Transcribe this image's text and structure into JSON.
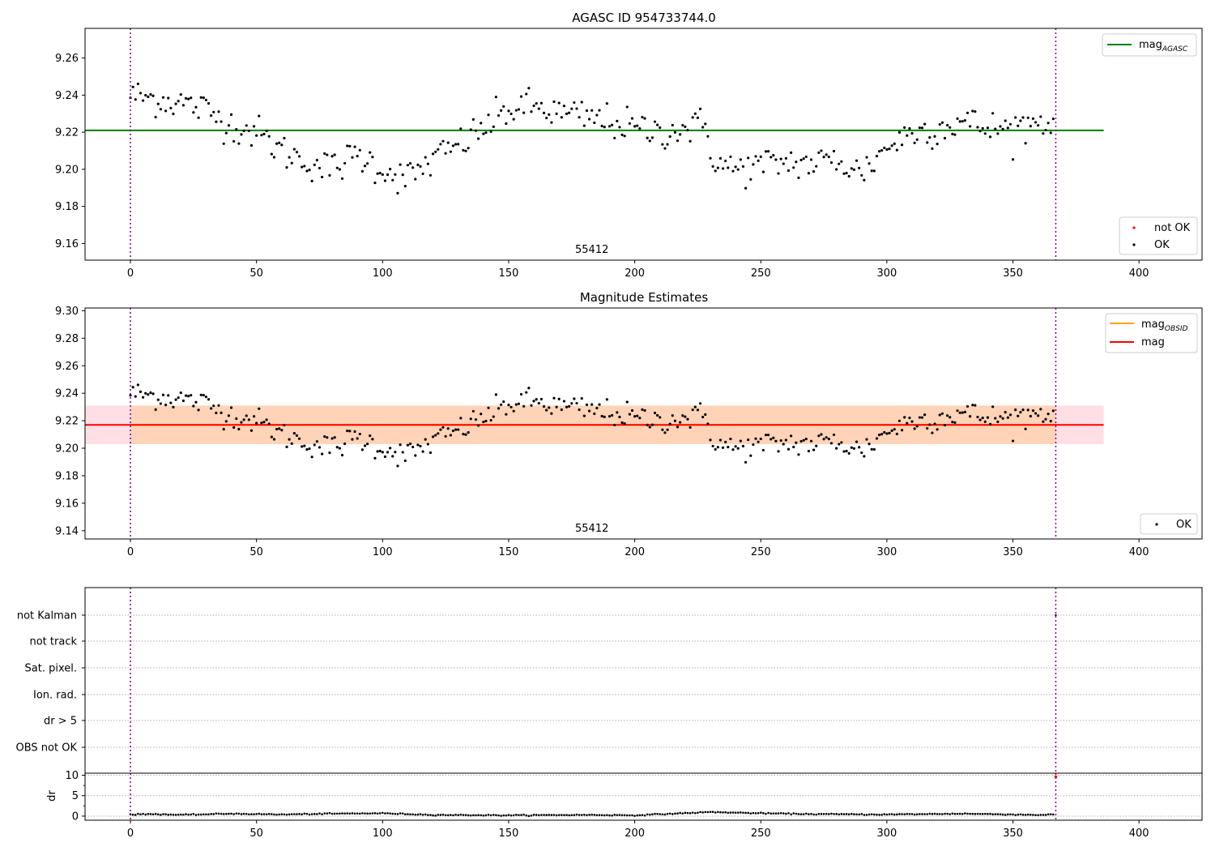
{
  "chart_data": [
    {
      "type": "scatter",
      "title": "AGASC ID 954733744.0",
      "xlim": [
        -18,
        425
      ],
      "ylim": [
        9.151,
        9.276
      ],
      "xticks": [
        0,
        50,
        100,
        150,
        200,
        250,
        300,
        350,
        400
      ],
      "yticks": [
        9.16,
        9.18,
        9.2,
        9.22,
        9.24,
        9.26
      ],
      "ytick_labels": [
        "9.16",
        "9.18",
        "9.20",
        "9.22",
        "9.24",
        "9.26"
      ],
      "grid": false,
      "obsid_label": "55412",
      "obsid_label_x": 183,
      "obsid_bounds": [
        0,
        367
      ],
      "hline": {
        "y": 9.221,
        "x_range": [
          -18,
          386
        ],
        "color": "#008000"
      },
      "legend_top": {
        "placement": "top-right",
        "entries": [
          {
            "label": "mag",
            "sub": "AGASC",
            "color": "#008000",
            "kind": "line"
          }
        ]
      },
      "legend_bottom": {
        "placement": "bottom-right",
        "entries": [
          {
            "label": "not OK",
            "color": "#ff0000",
            "kind": "dot"
          },
          {
            "label": "OK",
            "color": "#000000",
            "kind": "dot"
          }
        ]
      },
      "series": [
        {
          "name": "OK",
          "color": "#000000",
          "n": 367,
          "smooth_points": [
            [
              0,
              9.24
            ],
            [
              10,
              9.238
            ],
            [
              20,
              9.236
            ],
            [
              30,
              9.232
            ],
            [
              40,
              9.224
            ],
            [
              50,
              9.22
            ],
            [
              60,
              9.21
            ],
            [
              70,
              9.204
            ],
            [
              80,
              9.2
            ],
            [
              90,
              9.208
            ],
            [
              100,
              9.2
            ],
            [
              110,
              9.195
            ],
            [
              120,
              9.205
            ],
            [
              130,
              9.213
            ],
            [
              140,
              9.222
            ],
            [
              150,
              9.232
            ],
            [
              160,
              9.234
            ],
            [
              170,
              9.23
            ],
            [
              180,
              9.228
            ],
            [
              190,
              9.226
            ],
            [
              200,
              9.222
            ],
            [
              210,
              9.22
            ],
            [
              220,
              9.222
            ],
            [
              228,
              9.224
            ],
            [
              232,
              9.203
            ],
            [
              240,
              9.2
            ],
            [
              250,
              9.202
            ],
            [
              260,
              9.204
            ],
            [
              270,
              9.203
            ],
            [
              280,
              9.205
            ],
            [
              290,
              9.198
            ],
            [
              300,
              9.212
            ],
            [
              310,
              9.22
            ],
            [
              320,
              9.222
            ],
            [
              330,
              9.226
            ],
            [
              340,
              9.222
            ],
            [
              350,
              9.222
            ],
            [
              360,
              9.226
            ],
            [
              367,
              9.226
            ]
          ],
          "scatter": 0.008
        }
      ]
    },
    {
      "type": "scatter",
      "title": "Magnitude Estimates",
      "xlim": [
        -18,
        425
      ],
      "ylim": [
        9.134,
        9.302
      ],
      "xticks": [
        0,
        50,
        100,
        150,
        200,
        250,
        300,
        350,
        400
      ],
      "yticks": [
        9.14,
        9.16,
        9.18,
        9.2,
        9.22,
        9.24,
        9.26,
        9.28,
        9.3
      ],
      "ytick_labels": [
        "9.14",
        "9.16",
        "9.18",
        "9.20",
        "9.22",
        "9.24",
        "9.26",
        "9.28",
        "9.30"
      ],
      "grid": false,
      "obsid_label": "55412",
      "obsid_label_x": 183,
      "obsid_bounds": [
        0,
        367
      ],
      "mag_obsid": {
        "y": 9.217,
        "band": [
          9.203,
          9.231
        ],
        "x_range": [
          0,
          367
        ],
        "color": "#ffa500"
      },
      "mag": {
        "y": 9.217,
        "band": [
          9.203,
          9.231
        ],
        "x_range": [
          -18,
          386
        ],
        "color": "#ff0000"
      },
      "legend_top": {
        "placement": "top-right",
        "entries": [
          {
            "label": "mag",
            "sub": "OBSID",
            "color": "#ffa500",
            "kind": "line"
          },
          {
            "label": "mag",
            "sub": "",
            "color": "#ff0000",
            "kind": "line"
          }
        ]
      },
      "legend_bottom": {
        "placement": "bottom-right",
        "entries": [
          {
            "label": "OK",
            "color": "#000000",
            "kind": "dot"
          }
        ]
      },
      "series": [
        {
          "name": "OK",
          "color": "#000000",
          "same_as_panel": 0
        }
      ]
    },
    {
      "type": "scatter",
      "xlim": [
        -18,
        425
      ],
      "flag_labels": [
        "not Kalman",
        "not track",
        "Sat. pixel.",
        "Ion. rad.",
        "dr > 5",
        "OBS not OK"
      ],
      "grid": true,
      "obsid_bounds": [
        0,
        367
      ],
      "flag_marks": [
        {
          "x": 367,
          "flag": "not Kalman"
        }
      ]
    },
    {
      "type": "scatter",
      "ylabel": "dr",
      "xlim": [
        -18,
        425
      ],
      "ylim": [
        -1,
        10.5
      ],
      "yticks": [
        0,
        5,
        10
      ],
      "ytick_labels": [
        "0",
        "5",
        "10"
      ],
      "xticks": [
        0,
        50,
        100,
        150,
        200,
        250,
        300,
        350,
        400
      ],
      "grid": true,
      "obsid_bounds": [
        0,
        367
      ],
      "dr_smooth_points": [
        [
          0,
          0.4
        ],
        [
          10,
          0.5
        ],
        [
          20,
          0.3
        ],
        [
          40,
          0.6
        ],
        [
          60,
          0.4
        ],
        [
          80,
          0.6
        ],
        [
          100,
          0.7
        ],
        [
          120,
          0.3
        ],
        [
          150,
          0.2
        ],
        [
          180,
          0.3
        ],
        [
          200,
          0.2
        ],
        [
          215,
          0.6
        ],
        [
          230,
          1.0
        ],
        [
          250,
          0.7
        ],
        [
          270,
          0.5
        ],
        [
          300,
          0.4
        ],
        [
          330,
          0.6
        ],
        [
          360,
          0.3
        ],
        [
          366,
          0.4
        ]
      ],
      "dr_outlier": {
        "x": 367,
        "y": 9.6,
        "color": "#ff0000"
      }
    }
  ],
  "xtick_labels": [
    "0",
    "50",
    "100",
    "150",
    "200",
    "250",
    "300",
    "350",
    "400"
  ]
}
